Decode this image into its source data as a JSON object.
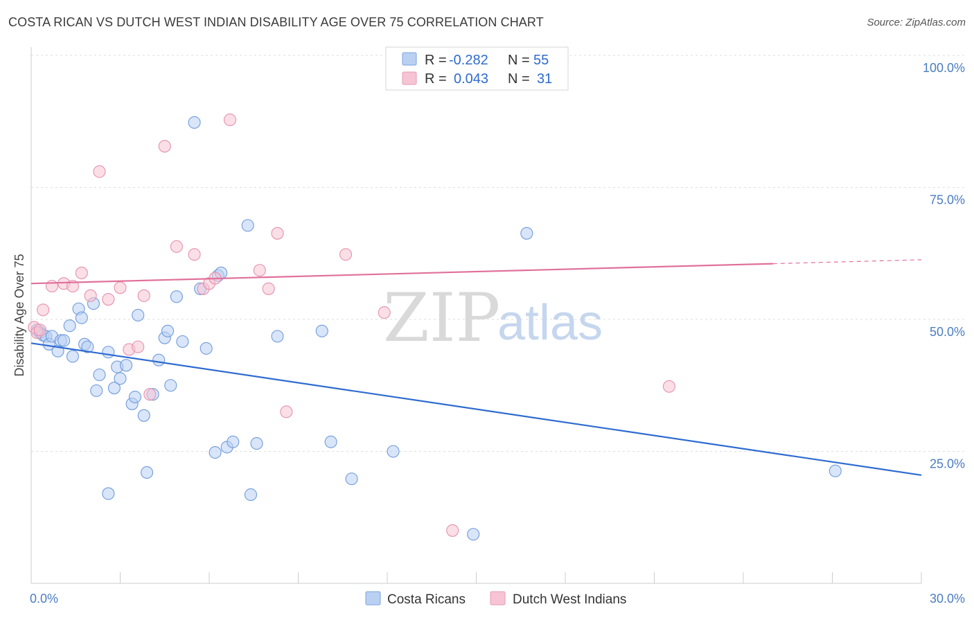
{
  "title": "COSTA RICAN VS DUTCH WEST INDIAN DISABILITY AGE OVER 75 CORRELATION CHART",
  "source": "Source: ZipAtlas.com",
  "watermark": {
    "zip": "ZIP",
    "atlas": "atlas"
  },
  "colors": {
    "blue": "#2e6bd0",
    "pink": "#e0709a",
    "blue_fill": "#b9d0f2",
    "pink_fill": "#f6c4d4"
  },
  "legend_box": {
    "rows": [
      {
        "r_label": "R =",
        "r_value": "-0.282",
        "n_label": "N =",
        "n_value": "55"
      },
      {
        "r_label": "R =",
        "r_value": "0.043",
        "n_label": "N =",
        "n_value": "31"
      }
    ]
  },
  "chart_data": {
    "type": "scatter",
    "ylabel": "Disability Age Over 75",
    "xlabel": "",
    "xlim": [
      0,
      30
    ],
    "ylim": [
      0,
      100
    ],
    "x_ticks": [
      "0.0%",
      "30.0%"
    ],
    "y_ticks": [
      "100.0%",
      "75.0%",
      "50.0%",
      "25.0%"
    ],
    "y_tick_values": [
      100,
      75,
      50,
      25
    ],
    "grid": true,
    "legend_placement": "top-center",
    "series": [
      {
        "name": "Costa Ricans",
        "color": "#2e6bd0",
        "trend": {
          "x": [
            0,
            30
          ],
          "y": [
            45.5,
            20.5
          ]
        },
        "points": [
          [
            0.3,
            47.5
          ],
          [
            0.4,
            47.0
          ],
          [
            0.5,
            46.8
          ],
          [
            0.6,
            45.3
          ],
          [
            0.7,
            46.8
          ],
          [
            0.9,
            44.0
          ],
          [
            1.0,
            46.0
          ],
          [
            1.1,
            46.0
          ],
          [
            1.3,
            48.8
          ],
          [
            1.4,
            43.0
          ],
          [
            1.6,
            52.0
          ],
          [
            1.7,
            50.3
          ],
          [
            1.8,
            45.3
          ],
          [
            1.9,
            44.8
          ],
          [
            2.1,
            53.0
          ],
          [
            2.2,
            36.5
          ],
          [
            2.3,
            39.5
          ],
          [
            2.6,
            17.0
          ],
          [
            2.6,
            43.8
          ],
          [
            2.8,
            37.0
          ],
          [
            2.9,
            41.0
          ],
          [
            3.0,
            38.8
          ],
          [
            3.2,
            41.3
          ],
          [
            3.4,
            34.0
          ],
          [
            3.5,
            35.3
          ],
          [
            3.6,
            50.8
          ],
          [
            3.8,
            31.8
          ],
          [
            3.9,
            21.0
          ],
          [
            4.1,
            35.8
          ],
          [
            4.3,
            42.3
          ],
          [
            4.5,
            46.5
          ],
          [
            4.6,
            47.8
          ],
          [
            4.7,
            37.5
          ],
          [
            4.9,
            54.3
          ],
          [
            5.1,
            45.8
          ],
          [
            5.5,
            87.3
          ],
          [
            5.7,
            55.8
          ],
          [
            5.9,
            44.5
          ],
          [
            6.2,
            24.8
          ],
          [
            6.3,
            58.3
          ],
          [
            6.4,
            58.8
          ],
          [
            6.6,
            25.8
          ],
          [
            6.8,
            26.8
          ],
          [
            7.3,
            67.8
          ],
          [
            7.4,
            16.8
          ],
          [
            7.6,
            26.5
          ],
          [
            8.3,
            46.8
          ],
          [
            9.8,
            47.8
          ],
          [
            10.1,
            26.8
          ],
          [
            10.8,
            19.8
          ],
          [
            12.2,
            25.0
          ],
          [
            14.9,
            9.3
          ],
          [
            16.7,
            66.3
          ],
          [
            27.1,
            21.3
          ],
          [
            0.2,
            48.0
          ]
        ]
      },
      {
        "name": "Dutch West Indians",
        "color": "#e0709a",
        "trend": {
          "x": [
            0,
            30
          ],
          "y": [
            56.8,
            61.3
          ]
        },
        "points": [
          [
            0.1,
            48.5
          ],
          [
            0.4,
            51.8
          ],
          [
            0.7,
            56.3
          ],
          [
            1.1,
            56.8
          ],
          [
            1.4,
            56.3
          ],
          [
            1.7,
            58.8
          ],
          [
            2.0,
            54.5
          ],
          [
            2.3,
            78.0
          ],
          [
            2.6,
            53.8
          ],
          [
            3.0,
            56.0
          ],
          [
            3.3,
            44.3
          ],
          [
            3.6,
            44.8
          ],
          [
            3.8,
            54.5
          ],
          [
            4.0,
            35.8
          ],
          [
            4.5,
            82.8
          ],
          [
            4.9,
            63.8
          ],
          [
            5.5,
            62.3
          ],
          [
            5.8,
            55.8
          ],
          [
            6.0,
            56.8
          ],
          [
            6.2,
            57.8
          ],
          [
            6.7,
            87.8
          ],
          [
            7.7,
            59.3
          ],
          [
            8.0,
            55.8
          ],
          [
            8.3,
            66.3
          ],
          [
            8.6,
            32.5
          ],
          [
            10.6,
            62.3
          ],
          [
            11.9,
            51.3
          ],
          [
            14.2,
            10.0
          ],
          [
            21.5,
            37.3
          ],
          [
            0.2,
            47.5
          ],
          [
            0.3,
            48.0
          ]
        ]
      }
    ]
  }
}
